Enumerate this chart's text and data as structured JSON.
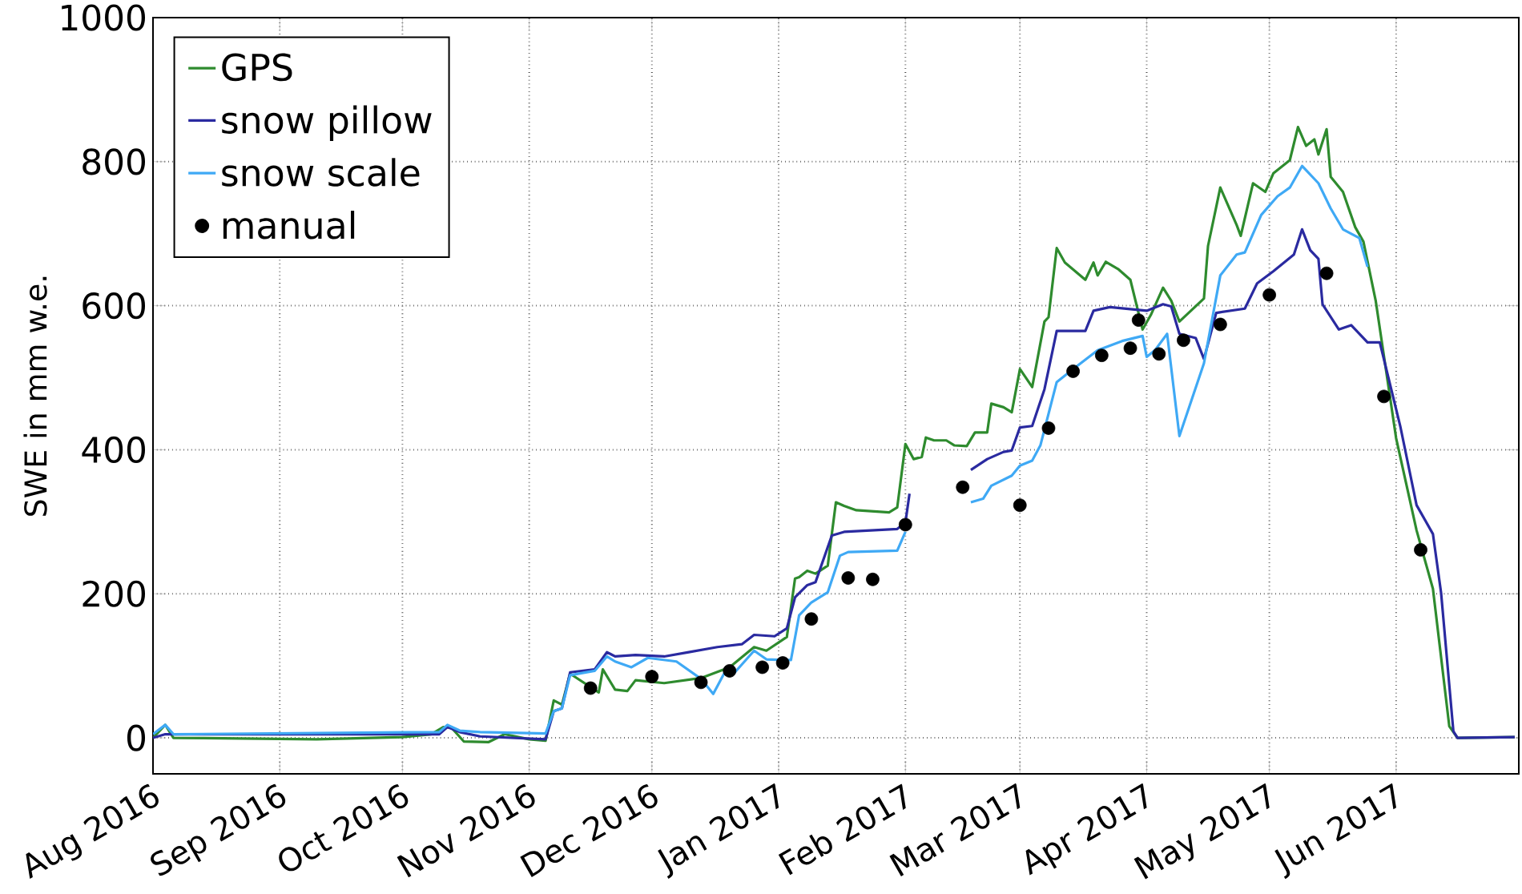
{
  "chart_data": {
    "type": "line",
    "ylabel": "SWE in mm w.e.",
    "xlim": [
      "2016-08-01",
      "2017-07-01"
    ],
    "ylim": [
      -50,
      1000
    ],
    "xticks": [
      {
        "value": "2016-08-01",
        "label": "Aug 2016"
      },
      {
        "value": "2016-09-01",
        "label": "Sep 2016"
      },
      {
        "value": "2016-10-01",
        "label": "Oct 2016"
      },
      {
        "value": "2016-11-01",
        "label": "Nov 2016"
      },
      {
        "value": "2016-12-01",
        "label": "Dec 2016"
      },
      {
        "value": "2017-01-01",
        "label": "Jan 2017"
      },
      {
        "value": "2017-02-01",
        "label": "Feb 2017"
      },
      {
        "value": "2017-03-01",
        "label": "Mar 2017"
      },
      {
        "value": "2017-04-01",
        "label": "Apr 2017"
      },
      {
        "value": "2017-05-01",
        "label": "May 2017"
      },
      {
        "value": "2017-06-01",
        "label": "Jun 2017"
      }
    ],
    "yticks": [
      0,
      200,
      400,
      600,
      800,
      1000
    ],
    "grid": true,
    "legend": "top left",
    "series": [
      {
        "name": "GPS",
        "color": "#2e8b2e",
        "x": [
          "2016-08-01",
          "2016-08-04",
          "2016-08-06",
          "2016-09-10",
          "2016-10-01",
          "2016-10-08",
          "2016-10-11",
          "2016-10-13",
          "2016-10-16",
          "2016-10-22",
          "2016-10-26",
          "2016-11-01",
          "2016-11-05",
          "2016-11-07",
          "2016-11-09",
          "2016-11-11",
          "2016-11-18",
          "2016-11-19",
          "2016-11-22",
          "2016-11-25",
          "2016-11-27",
          "2016-12-04",
          "2016-12-13",
          "2016-12-20",
          "2016-12-26",
          "2016-12-29",
          "2017-01-03",
          "2017-01-05",
          "2017-01-06",
          "2017-01-08",
          "2017-01-10",
          "2017-01-13",
          "2017-01-15",
          "2017-01-17",
          "2017-01-20",
          "2017-01-28",
          "2017-01-30",
          "2017-02-01",
          "2017-02-03",
          "2017-02-05",
          "2017-02-06",
          "2017-02-08",
          "2017-02-11",
          "2017-02-13",
          "2017-02-16",
          "2017-02-18",
          "2017-02-21",
          "2017-02-22",
          "2017-02-25",
          "2017-02-27",
          "2017-03-01",
          "2017-03-04",
          "2017-03-07",
          "2017-03-08",
          "2017-03-10",
          "2017-03-12",
          "2017-03-17",
          "2017-03-19",
          "2017-03-20",
          "2017-03-22",
          "2017-03-25",
          "2017-03-28",
          "2017-03-31",
          "2017-04-02",
          "2017-04-05",
          "2017-04-07",
          "2017-04-09",
          "2017-04-15",
          "2017-04-16",
          "2017-04-19",
          "2017-04-23",
          "2017-04-24",
          "2017-04-27",
          "2017-04-30",
          "2017-05-02",
          "2017-05-06",
          "2017-05-08",
          "2017-05-10",
          "2017-05-12",
          "2017-05-13",
          "2017-05-15",
          "2017-05-16",
          "2017-05-19",
          "2017-05-22",
          "2017-05-24",
          "2017-05-27",
          "2017-06-01",
          "2017-06-06",
          "2017-06-10",
          "2017-06-14",
          "2017-06-16",
          "2017-06-30"
        ],
        "values": [
          0,
          18,
          0,
          -2,
          1,
          5,
          15,
          14,
          -5,
          -6,
          5,
          -2,
          -4,
          52,
          46,
          89,
          63,
          95,
          67,
          65,
          80,
          76,
          83,
          98,
          126,
          121,
          140,
          221,
          223,
          232,
          228,
          239,
          327,
          322,
          316,
          313,
          320,
          408,
          387,
          390,
          417,
          413,
          413,
          406,
          405,
          424,
          424,
          464,
          459,
          452,
          512,
          487,
          578,
          584,
          680,
          660,
          636,
          660,
          642,
          661,
          651,
          636,
          567,
          587,
          625,
          607,
          578,
          610,
          683,
          764,
          712,
          697,
          770,
          758,
          784,
          802,
          848,
          822,
          831,
          810,
          845,
          779,
          758,
          709,
          689,
          607,
          416,
          288,
          207,
          16,
          0,
          1
        ]
      },
      {
        "name": "snow pillow",
        "color": "#2a2aa0",
        "x": [
          "2016-08-01",
          "2016-08-04",
          "2016-10-10",
          "2016-10-12",
          "2016-10-15",
          "2016-10-20",
          "2016-11-05",
          "2016-11-07",
          "2016-11-09",
          "2016-11-11",
          "2016-11-17",
          "2016-11-20",
          "2016-11-22",
          "2016-11-27",
          "2016-12-04",
          "2016-12-10",
          "2016-12-17",
          "2016-12-23",
          "2016-12-26",
          "2016-12-31",
          "2017-01-03",
          "2017-01-05",
          "2017-01-08",
          "2017-01-10",
          "2017-01-14",
          "2017-01-17",
          "2017-01-30",
          "2017-02-01",
          "2017-02-02",
          "2017-02-09",
          "2017-02-17",
          "2017-02-21",
          "2017-02-25",
          "2017-02-27",
          "2017-03-01",
          "2017-03-04",
          "2017-03-07",
          "2017-03-10",
          "2017-03-17",
          "2017-03-19",
          "2017-03-23",
          "2017-04-01",
          "2017-04-05",
          "2017-04-07",
          "2017-04-09",
          "2017-04-13",
          "2017-04-15",
          "2017-04-18",
          "2017-04-25",
          "2017-04-28",
          "2017-05-02",
          "2017-05-07",
          "2017-05-09",
          "2017-05-11",
          "2017-05-13",
          "2017-05-14",
          "2017-05-18",
          "2017-05-21",
          "2017-05-25",
          "2017-05-28",
          "2017-06-02",
          "2017-06-06",
          "2017-06-10",
          "2017-06-12",
          "2017-06-15",
          "2017-06-16",
          "2017-06-30"
        ],
        "values": [
          0,
          5,
          5,
          15,
          8,
          2,
          -2,
          37,
          41,
          91,
          95,
          119,
          113,
          115,
          113,
          119,
          126,
          130,
          143,
          141,
          152,
          195,
          212,
          216,
          281,
          286,
          290,
          299,
          339,
          null,
          372,
          387,
          397,
          399,
          431,
          433,
          484,
          565,
          565,
          593,
          598,
          593,
          602,
          599,
          561,
          555,
          526,
          590,
          596,
          631,
          648,
          671,
          706,
          677,
          665,
          602,
          567,
          573,
          549,
          549,
          433,
          323,
          283,
          201,
          9,
          0,
          1
        ]
      },
      {
        "name": "snow scale",
        "color": "#3fa9f5",
        "x": [
          "2016-08-01",
          "2016-08-04",
          "2016-08-06",
          "2016-10-10",
          "2016-10-12",
          "2016-10-15",
          "2016-10-20",
          "2016-11-05",
          "2016-11-07",
          "2016-11-09",
          "2016-11-11",
          "2016-11-17",
          "2016-11-20",
          "2016-11-22",
          "2016-11-26",
          "2016-11-30",
          "2016-12-07",
          "2016-12-13",
          "2016-12-16",
          "2016-12-19",
          "2016-12-21",
          "2016-12-26",
          "2016-12-29",
          "2017-01-02",
          "2017-01-04",
          "2017-01-06",
          "2017-01-09",
          "2017-01-13",
          "2017-01-16",
          "2017-01-18",
          "2017-01-30",
          "2017-02-01",
          "2017-02-09",
          "2017-02-17",
          "2017-02-20",
          "2017-02-22",
          "2017-02-27",
          "2017-03-01",
          "2017-03-04",
          "2017-03-06",
          "2017-03-10",
          "2017-03-14",
          "2017-03-20",
          "2017-03-26",
          "2017-03-31",
          "2017-04-01",
          "2017-04-03",
          "2017-04-06",
          "2017-04-09",
          "2017-04-15",
          "2017-04-19",
          "2017-04-23",
          "2017-04-25",
          "2017-04-29",
          "2017-05-03",
          "2017-05-06",
          "2017-05-09",
          "2017-05-13",
          "2017-05-16",
          "2017-05-19",
          "2017-05-23",
          "2017-05-25"
        ],
        "values": [
          5,
          18,
          5,
          8,
          18,
          10,
          8,
          6,
          37,
          41,
          87,
          93,
          113,
          106,
          98,
          111,
          106,
          82,
          61,
          93,
          89,
          121,
          109,
          108,
          108,
          170,
          188,
          202,
          253,
          258,
          260,
          286,
          null,
          327,
          332,
          350,
          364,
          378,
          385,
          406,
          494,
          512,
          538,
          551,
          558,
          529,
          538,
          561,
          419,
          520,
          642,
          671,
          674,
          726,
          752,
          764,
          794,
          770,
          735,
          706,
          694,
          654
        ]
      },
      {
        "name": "manual",
        "type": "scatter",
        "color": "#000000",
        "marker": "circle",
        "x": [
          "2016-11-16",
          "2016-12-01",
          "2016-12-13",
          "2016-12-20",
          "2016-12-28",
          "2017-01-02",
          "2017-01-09",
          "2017-01-18",
          "2017-01-24",
          "2017-02-01",
          "2017-02-15",
          "2017-03-01",
          "2017-03-08",
          "2017-03-14",
          "2017-03-21",
          "2017-03-28",
          "2017-03-30",
          "2017-04-04",
          "2017-04-10",
          "2017-04-19",
          "2017-05-01",
          "2017-05-15",
          "2017-05-29",
          "2017-06-07"
        ],
        "values": [
          69,
          85,
          77,
          93,
          98,
          104,
          165,
          222,
          220,
          296,
          348,
          323,
          430,
          509,
          531,
          541,
          580,
          533,
          552,
          574,
          615,
          645,
          474,
          261
        ]
      }
    ]
  }
}
